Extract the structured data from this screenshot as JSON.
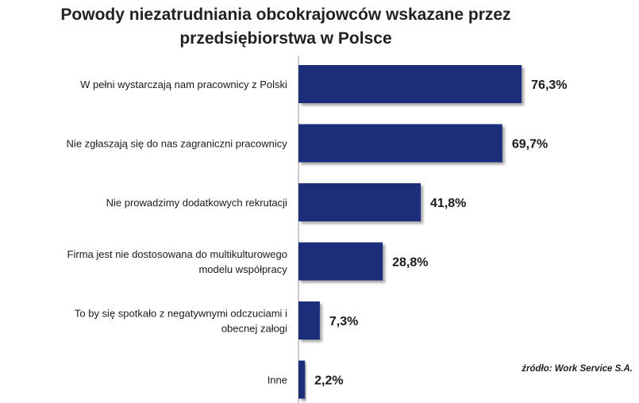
{
  "chart_data": {
    "type": "bar",
    "orientation": "horizontal",
    "title_lines": [
      "Powody niezatrudniania obcokrajowców wskazane przez",
      "przedsiębiorstwa w Polsce"
    ],
    "categories": [
      [
        "W pełni wystarczają nam pracownicy z Polski"
      ],
      [
        "Nie zgłaszają się do nas zagraniczni pracownicy"
      ],
      [
        "Nie prowadzimy dodatkowych rekrutacji"
      ],
      [
        "Firma jest nie dostosowana do multikulturowego",
        "modelu współpracy"
      ],
      [
        "To by się spotkało z negatywnymi odczuciami i",
        "obecnej załogi"
      ],
      [
        "Inne"
      ]
    ],
    "values": [
      76.3,
      69.7,
      41.8,
      28.8,
      7.3,
      2.2
    ],
    "value_labels": [
      "76,3%",
      "69,7%",
      "41,8%",
      "28,8%",
      "7,3%",
      "2,2%"
    ],
    "unit": "%",
    "xlim": [
      0,
      100
    ],
    "grid": false,
    "legend": "none",
    "bar_color": "#1f2d7a",
    "source": "źródło: Work Service S.A."
  }
}
